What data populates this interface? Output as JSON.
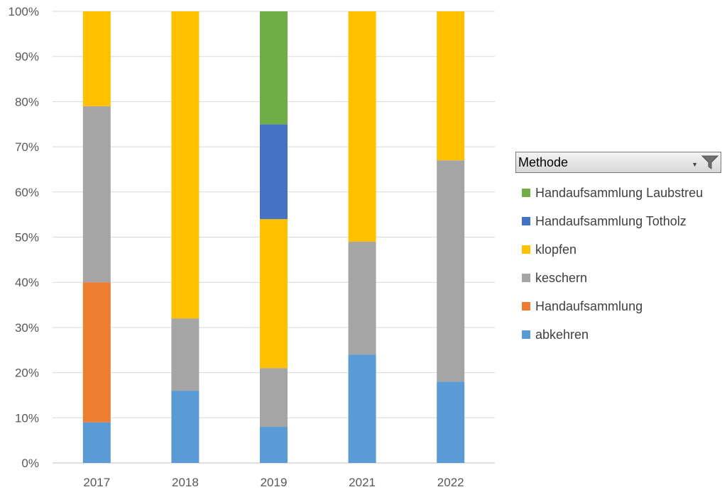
{
  "chart_data": {
    "type": "bar",
    "stacked": "percent",
    "categories": [
      "2017",
      "2018",
      "2019",
      "2021",
      "2022"
    ],
    "series": [
      {
        "name": "abkehren",
        "color": "#5b9bd5",
        "values": [
          9,
          16,
          8,
          24,
          18
        ]
      },
      {
        "name": "Handaufsammlung",
        "color": "#ed7d31",
        "values": [
          31,
          0,
          0,
          0,
          0
        ]
      },
      {
        "name": "keschern",
        "color": "#a5a5a5",
        "values": [
          39,
          16,
          13,
          25,
          49
        ]
      },
      {
        "name": "klopfen",
        "color": "#ffc000",
        "values": [
          21,
          68,
          33,
          51,
          33
        ]
      },
      {
        "name": "Handaufsammlung Totholz",
        "color": "#4472c4",
        "values": [
          0,
          0,
          21,
          0,
          0
        ]
      },
      {
        "name": "Handaufsammlung Laubstreu",
        "color": "#70ad47",
        "values": [
          0,
          0,
          25,
          0,
          0
        ]
      }
    ],
    "y_ticks": [
      "0%",
      "10%",
      "20%",
      "30%",
      "40%",
      "50%",
      "60%",
      "70%",
      "80%",
      "90%",
      "100%"
    ],
    "ylim": [
      0,
      100
    ],
    "grid": true,
    "legend_position": "right"
  },
  "legend": {
    "title": "Methode",
    "items": [
      {
        "label": "Handaufsammlung Laubstreu",
        "color": "#70ad47"
      },
      {
        "label": "Handaufsammlung Totholz",
        "color": "#4472c4"
      },
      {
        "label": "klopfen",
        "color": "#ffc000"
      },
      {
        "label": "keschern",
        "color": "#a5a5a5"
      },
      {
        "label": "Handaufsammlung",
        "color": "#ed7d31"
      },
      {
        "label": "abkehren",
        "color": "#5b9bd5"
      }
    ]
  },
  "stray_glyph": ")"
}
